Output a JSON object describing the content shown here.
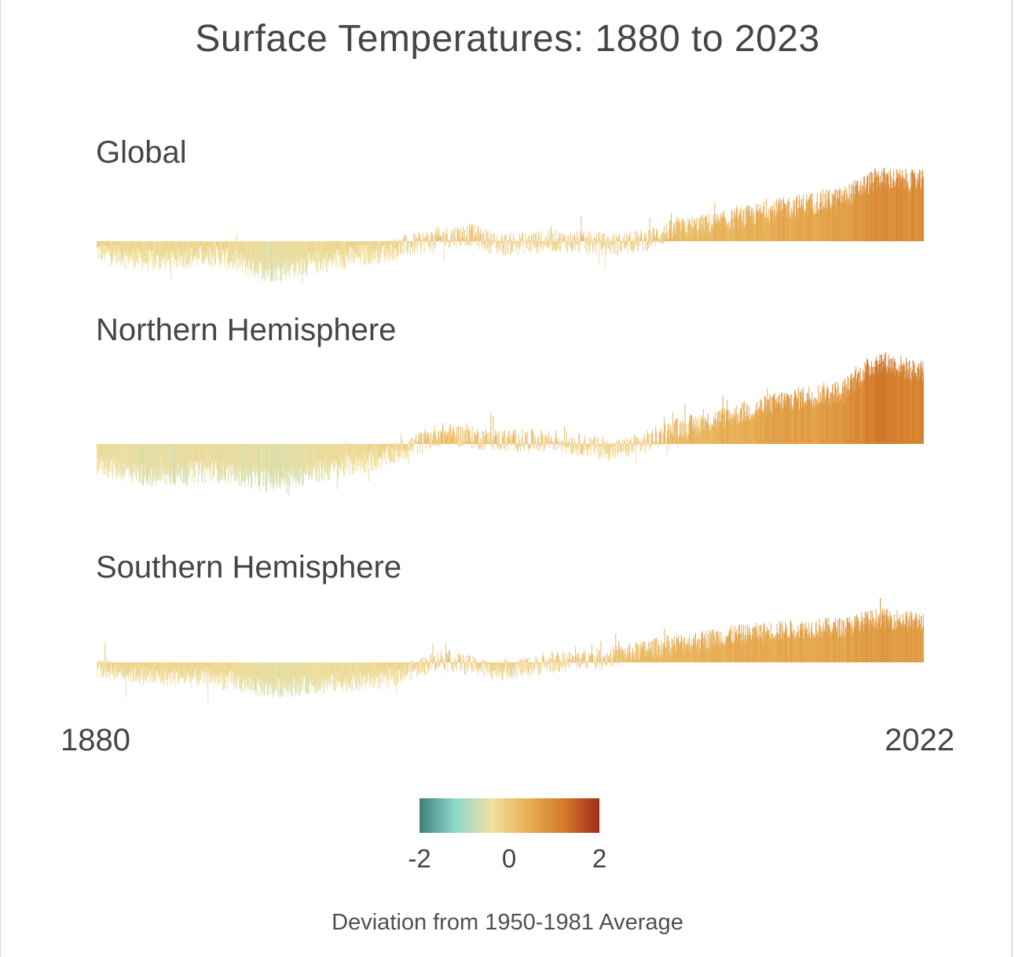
{
  "title": "Surface Temperatures: 1880 to 2023",
  "panels": [
    {
      "label": "Global"
    },
    {
      "label": "Northern Hemisphere"
    },
    {
      "label": "Southern Hemisphere"
    }
  ],
  "x_axis": {
    "start_label": "1880",
    "end_label": "2022"
  },
  "legend": {
    "ticks": [
      "-2",
      "0",
      "2"
    ],
    "label": "Deviation from 1950-1981 Average",
    "colors": [
      "#3f7f78",
      "#8fd8cc",
      "#f0e0a0",
      "#e8b055",
      "#d47c2a",
      "#a3291e"
    ]
  },
  "chart_data": {
    "type": "bar",
    "xlim": [
      1880,
      2022
    ],
    "ylim": [
      -2,
      2
    ],
    "colorscale": {
      "range": [
        -2,
        2
      ],
      "colors": [
        "#3f7f78",
        "#8fd8cc",
        "#f0e0a0",
        "#e8b055",
        "#d47c2a",
        "#a3291e"
      ]
    },
    "series": [
      {
        "name": "Global",
        "anchors": [
          [
            1880,
            -0.15
          ],
          [
            1890,
            -0.3
          ],
          [
            1900,
            -0.2
          ],
          [
            1910,
            -0.45
          ],
          [
            1920,
            -0.3
          ],
          [
            1930,
            -0.15
          ],
          [
            1940,
            0.05
          ],
          [
            1945,
            0.1
          ],
          [
            1950,
            -0.05
          ],
          [
            1960,
            0.0
          ],
          [
            1970,
            -0.05
          ],
          [
            1975,
            0.0
          ],
          [
            1980,
            0.15
          ],
          [
            1990,
            0.3
          ],
          [
            2000,
            0.5
          ],
          [
            2010,
            0.65
          ],
          [
            2016,
            0.95
          ],
          [
            2022,
            0.9
          ]
        ]
      },
      {
        "name": "Northern Hemisphere",
        "anchors": [
          [
            1880,
            -0.3
          ],
          [
            1890,
            -0.5
          ],
          [
            1900,
            -0.4
          ],
          [
            1910,
            -0.55
          ],
          [
            1920,
            -0.4
          ],
          [
            1930,
            -0.2
          ],
          [
            1940,
            0.15
          ],
          [
            1950,
            0.05
          ],
          [
            1960,
            0.05
          ],
          [
            1970,
            -0.1
          ],
          [
            1975,
            0.0
          ],
          [
            1980,
            0.2
          ],
          [
            1990,
            0.4
          ],
          [
            2000,
            0.65
          ],
          [
            2010,
            0.8
          ],
          [
            2016,
            1.25
          ],
          [
            2022,
            1.1
          ]
        ]
      },
      {
        "name": "Southern Hemisphere",
        "anchors": [
          [
            1880,
            -0.1
          ],
          [
            1890,
            -0.25
          ],
          [
            1900,
            -0.25
          ],
          [
            1910,
            -0.45
          ],
          [
            1920,
            -0.35
          ],
          [
            1930,
            -0.3
          ],
          [
            1940,
            0.05
          ],
          [
            1950,
            -0.15
          ],
          [
            1960,
            0.0
          ],
          [
            1970,
            0.1
          ],
          [
            1980,
            0.3
          ],
          [
            1990,
            0.45
          ],
          [
            2000,
            0.55
          ],
          [
            2010,
            0.6
          ],
          [
            2016,
            0.75
          ],
          [
            2022,
            0.7
          ]
        ]
      }
    ]
  }
}
